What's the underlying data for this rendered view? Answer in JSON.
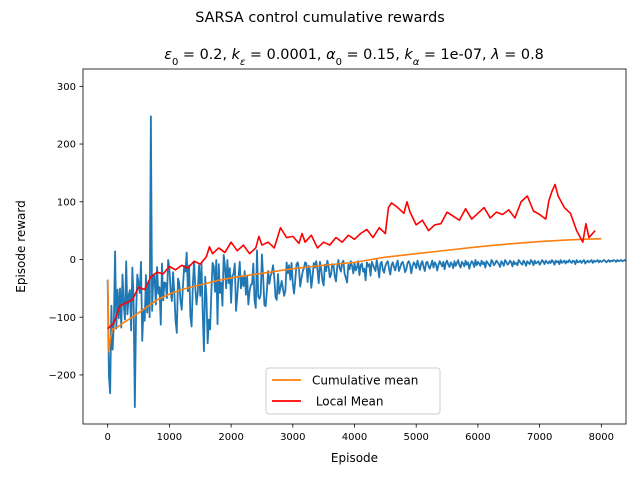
{
  "figure": {
    "suptitle": "SARSA control cumulative rewards"
  },
  "chart_data": {
    "type": "line",
    "title_parts": {
      "eps0": "ε",
      "eps0_sub": "0",
      "eps0_val": " = 0.2, ",
      "keps": "k",
      "keps_sub": "ε",
      "keps_val": " = 0.0001, ",
      "alpha0": "α",
      "alpha0_sub": "0",
      "alpha0_val": " = 0.15, ",
      "kalpha": "k",
      "kalpha_sub": "α",
      "kalpha_val": " = 1e-07, ",
      "lambda": "λ",
      "lambda_val": " = 0.8"
    },
    "xlabel": "Episode",
    "ylabel": "Episode reward",
    "xlim": [
      -400,
      8400
    ],
    "ylim": [
      -285,
      330
    ],
    "xticks": [
      0,
      1000,
      2000,
      3000,
      4000,
      5000,
      6000,
      7000,
      8000
    ],
    "yticks": [
      -200,
      -100,
      0,
      100,
      200,
      300
    ],
    "grid": false,
    "legend_position": "lower-center",
    "series": [
      {
        "name": "Episode reward",
        "color": "#1f77b4",
        "x_start": 0,
        "x_step": 20,
        "values": [
          -35,
          -201,
          -232,
          -80,
          -156,
          -110,
          14,
          -120,
          -52,
          -102,
          -50,
          -118,
          -26,
          -77,
          -104,
          -3,
          -95,
          -62,
          -53,
          -123,
          -14,
          -70,
          -256,
          -94,
          -26,
          -41,
          -58,
          -4,
          -141,
          -86,
          -106,
          -27,
          -92,
          -38,
          -100,
          248,
          -89,
          -30,
          -28,
          -78,
          -13,
          -59,
          -48,
          -113,
          -7,
          -71,
          -40,
          -41,
          -67,
          -1,
          -15,
          -55,
          -72,
          -22,
          -58,
          -106,
          -127,
          -33,
          -41,
          -71,
          -87,
          -46,
          -11,
          -21,
          12,
          -55,
          -10,
          -99,
          -116,
          -44,
          -3,
          -49,
          -78,
          -57,
          -10,
          -63,
          -6,
          -92,
          -159,
          -30,
          -63,
          -145,
          -104,
          -121,
          -56,
          -6,
          -12,
          -56,
          -1,
          -112,
          -8,
          -58,
          -40,
          -80,
          8,
          -11,
          -50,
          -1,
          -41,
          -15,
          -75,
          -28,
          -25,
          -7,
          -89,
          -64,
          -31,
          -4,
          -50,
          -30,
          -46,
          -20,
          -61,
          -29,
          -78,
          -55,
          -44,
          -43,
          -7,
          -71,
          -84,
          16,
          -64,
          -68,
          -60,
          9,
          -32,
          -79,
          -81,
          -54,
          -20,
          -42,
          -28,
          -23,
          -10,
          -31,
          -65,
          -70,
          -25,
          -59,
          -49,
          -37,
          -50,
          -63,
          -54,
          -5,
          -24,
          -10,
          -35,
          -6,
          -42,
          -59,
          -36,
          -8,
          -5,
          -16,
          -47,
          -33,
          -21,
          -15,
          -5,
          -7,
          -39,
          -11,
          -19,
          -49,
          -30,
          -6,
          -14,
          -3,
          -18,
          -41,
          -4,
          -17,
          -36,
          -45,
          -9,
          -20,
          -2,
          -12,
          -31,
          -26,
          -8,
          -10,
          -29,
          -38,
          -13,
          -1,
          -15,
          -21,
          -6,
          -2,
          -25,
          -32,
          -40,
          -9,
          -17,
          -3,
          -11,
          -24,
          -6,
          -19,
          -14,
          -3,
          -27,
          -10,
          -7,
          -21,
          -16,
          -36,
          -5,
          -12,
          -8,
          -28,
          -4,
          -9,
          -15,
          -20,
          -1,
          -14,
          -31,
          -7,
          -4,
          -18,
          -23,
          -11,
          -6,
          -3,
          -16,
          -26,
          -10,
          -5,
          -13,
          -19,
          -8,
          -2,
          -20,
          -14,
          -7,
          -4,
          -11,
          -22,
          -17,
          -6,
          -3,
          -9,
          -24,
          -12,
          -5,
          -8,
          -15,
          -2,
          -10,
          -18,
          -7,
          -3,
          -13,
          -20,
          -6,
          -4,
          -11,
          -16,
          -9,
          -2,
          -14,
          -5,
          -8,
          -19,
          -10,
          -3,
          -7,
          -12,
          -4,
          -17,
          -6,
          -2,
          -9,
          -13,
          -5,
          -8,
          -15,
          -3,
          -11,
          -6,
          -1,
          -10,
          -14,
          -4,
          -7,
          -12,
          -2,
          -9,
          -5,
          -16,
          -8,
          -3,
          -6,
          -13,
          -1,
          -10,
          -4,
          -7,
          -11,
          -2,
          -8,
          -5,
          -14,
          -3,
          -6,
          -9,
          -12,
          -1,
          -4,
          -10,
          -7,
          -2,
          -5,
          -8,
          -13,
          -3,
          -6,
          -11,
          -1,
          -4,
          -9,
          -7,
          -2,
          -5,
          -12,
          -3,
          -8,
          -6,
          -10,
          -1,
          -4,
          -7,
          -9,
          -2,
          -5,
          -11,
          -3,
          -6,
          -8,
          -1,
          -4,
          -10,
          -2,
          -7,
          -5,
          -3,
          -9,
          -6,
          -1,
          -4,
          -8,
          -2,
          -5,
          -7,
          -3,
          -6,
          -1,
          -4,
          -9,
          -2,
          -5,
          -3,
          -8,
          -1,
          -6,
          -4,
          -2,
          -7,
          -3,
          -5,
          -1,
          -4,
          -6,
          -2,
          -3,
          -8,
          -1,
          -5,
          -4,
          -2,
          -6,
          -3,
          -1,
          -7,
          -4,
          -2,
          -5,
          -3,
          -1,
          -6,
          -2,
          -4,
          -3,
          -1,
          -5,
          -2,
          -4,
          -3,
          -1,
          -2,
          -5,
          -3,
          -1,
          -4,
          -2,
          -3,
          -1,
          -2,
          -4,
          -1,
          -3,
          -2,
          -1,
          -3,
          -2,
          -1,
          -2,
          -1
        ]
      },
      {
        "name": "Cumulative mean",
        "color": "#ff7f0e",
        "points": [
          [
            0,
            -35
          ],
          [
            20,
            -160
          ],
          [
            40,
            -140
          ],
          [
            80,
            -120
          ],
          [
            150,
            -118
          ],
          [
            250,
            -110
          ],
          [
            400,
            -100
          ],
          [
            600,
            -85
          ],
          [
            800,
            -70
          ],
          [
            1000,
            -60
          ],
          [
            1200,
            -52
          ],
          [
            1500,
            -44
          ],
          [
            1800,
            -36
          ],
          [
            2100,
            -30
          ],
          [
            2500,
            -24
          ],
          [
            3000,
            -16
          ],
          [
            3500,
            -10
          ],
          [
            4000,
            -5
          ],
          [
            4500,
            4
          ],
          [
            5000,
            10
          ],
          [
            5500,
            16
          ],
          [
            6000,
            22
          ],
          [
            6500,
            27
          ],
          [
            7000,
            31
          ],
          [
            7500,
            34
          ],
          [
            8000,
            36
          ]
        ]
      },
      {
        "name": " Local Mean",
        "color": "#ff0000",
        "points": [
          [
            0,
            -120
          ],
          [
            100,
            -110
          ],
          [
            200,
            -80
          ],
          [
            300,
            -75
          ],
          [
            400,
            -70
          ],
          [
            500,
            -48
          ],
          [
            600,
            -52
          ],
          [
            700,
            -30
          ],
          [
            800,
            -22
          ],
          [
            900,
            -25
          ],
          [
            1000,
            -12
          ],
          [
            1100,
            -18
          ],
          [
            1200,
            -10
          ],
          [
            1300,
            -15
          ],
          [
            1400,
            -3
          ],
          [
            1500,
            -8
          ],
          [
            1600,
            5
          ],
          [
            1650,
            22
          ],
          [
            1700,
            10
          ],
          [
            1800,
            20
          ],
          [
            1900,
            12
          ],
          [
            2000,
            30
          ],
          [
            2100,
            15
          ],
          [
            2200,
            25
          ],
          [
            2300,
            10
          ],
          [
            2400,
            20
          ],
          [
            2450,
            40
          ],
          [
            2500,
            25
          ],
          [
            2600,
            30
          ],
          [
            2700,
            20
          ],
          [
            2800,
            55
          ],
          [
            2900,
            38
          ],
          [
            3000,
            40
          ],
          [
            3100,
            28
          ],
          [
            3150,
            45
          ],
          [
            3200,
            30
          ],
          [
            3300,
            42
          ],
          [
            3400,
            20
          ],
          [
            3500,
            30
          ],
          [
            3600,
            25
          ],
          [
            3700,
            38
          ],
          [
            3800,
            30
          ],
          [
            3900,
            42
          ],
          [
            4000,
            35
          ],
          [
            4100,
            45
          ],
          [
            4200,
            52
          ],
          [
            4300,
            38
          ],
          [
            4400,
            55
          ],
          [
            4500,
            45
          ],
          [
            4550,
            90
          ],
          [
            4600,
            98
          ],
          [
            4700,
            90
          ],
          [
            4800,
            80
          ],
          [
            4850,
            100
          ],
          [
            4900,
            82
          ],
          [
            5000,
            60
          ],
          [
            5100,
            68
          ],
          [
            5200,
            50
          ],
          [
            5300,
            60
          ],
          [
            5400,
            62
          ],
          [
            5500,
            82
          ],
          [
            5600,
            75
          ],
          [
            5700,
            68
          ],
          [
            5800,
            88
          ],
          [
            5900,
            70
          ],
          [
            6000,
            80
          ],
          [
            6100,
            90
          ],
          [
            6200,
            72
          ],
          [
            6300,
            82
          ],
          [
            6400,
            78
          ],
          [
            6500,
            86
          ],
          [
            6600,
            72
          ],
          [
            6700,
            100
          ],
          [
            6800,
            110
          ],
          [
            6900,
            84
          ],
          [
            7000,
            78
          ],
          [
            7100,
            70
          ],
          [
            7150,
            102
          ],
          [
            7200,
            118
          ],
          [
            7250,
            130
          ],
          [
            7300,
            110
          ],
          [
            7400,
            90
          ],
          [
            7500,
            80
          ],
          [
            7600,
            50
          ],
          [
            7700,
            30
          ],
          [
            7750,
            62
          ],
          [
            7800,
            38
          ],
          [
            7900,
            50
          ]
        ]
      }
    ]
  }
}
